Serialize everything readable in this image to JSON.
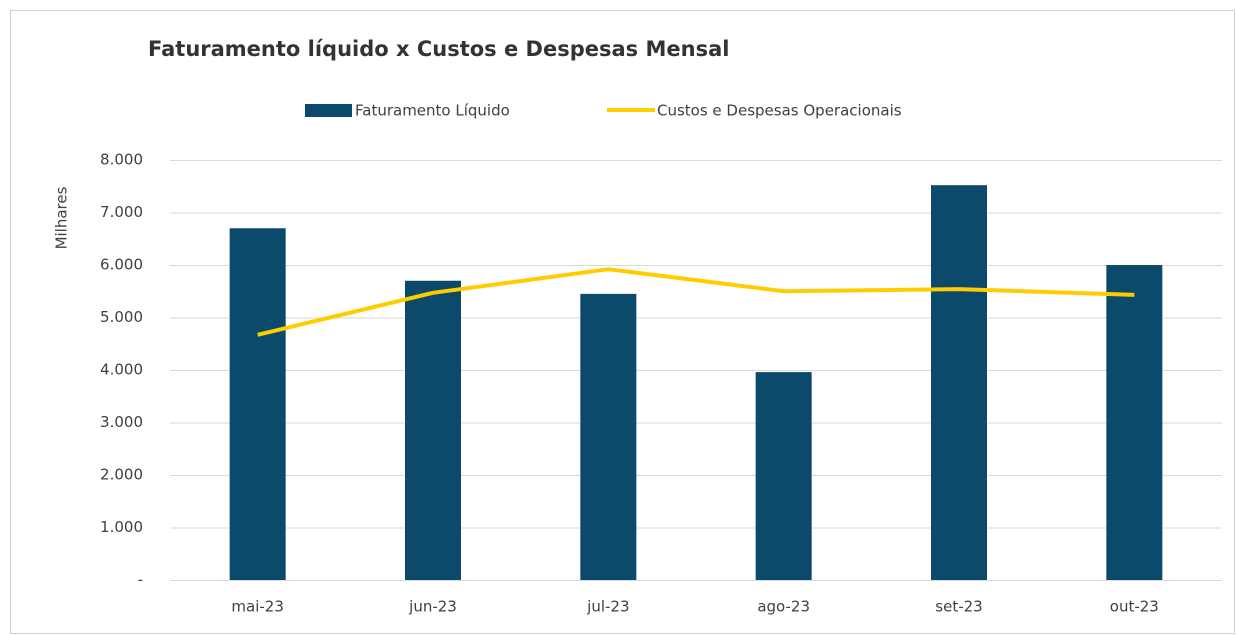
{
  "chart_data": {
    "type": "combo",
    "title": "Faturamento líquido x Custos e Despesas Mensal",
    "y_label": "Milhares",
    "categories": [
      "mai-23",
      "jun-23",
      "jul-23",
      "ago-23",
      "set-23",
      "out-23"
    ],
    "series": [
      {
        "name": "Faturamento Líquido",
        "type": "bar",
        "color": "#0b4a6b",
        "values": [
          6700,
          5700,
          5450,
          3960,
          7520,
          6000
        ]
      },
      {
        "name": "Custos e Despesas Operacionais",
        "type": "line",
        "color": "#ffcc00",
        "values": [
          4670,
          5470,
          5920,
          5500,
          5540,
          5430
        ]
      }
    ],
    "ylim": [
      0,
      8000
    ],
    "yticks": [
      {
        "value": 0,
        "label": "-"
      },
      {
        "value": 1000,
        "label": "1.000"
      },
      {
        "value": 2000,
        "label": "2.000"
      },
      {
        "value": 3000,
        "label": "3.000"
      },
      {
        "value": 4000,
        "label": "4.000"
      },
      {
        "value": 5000,
        "label": "5.000"
      },
      {
        "value": 6000,
        "label": "6.000"
      },
      {
        "value": 7000,
        "label": "7.000"
      },
      {
        "value": 8000,
        "label": "8.000"
      }
    ],
    "grid": true,
    "legend": "top"
  }
}
